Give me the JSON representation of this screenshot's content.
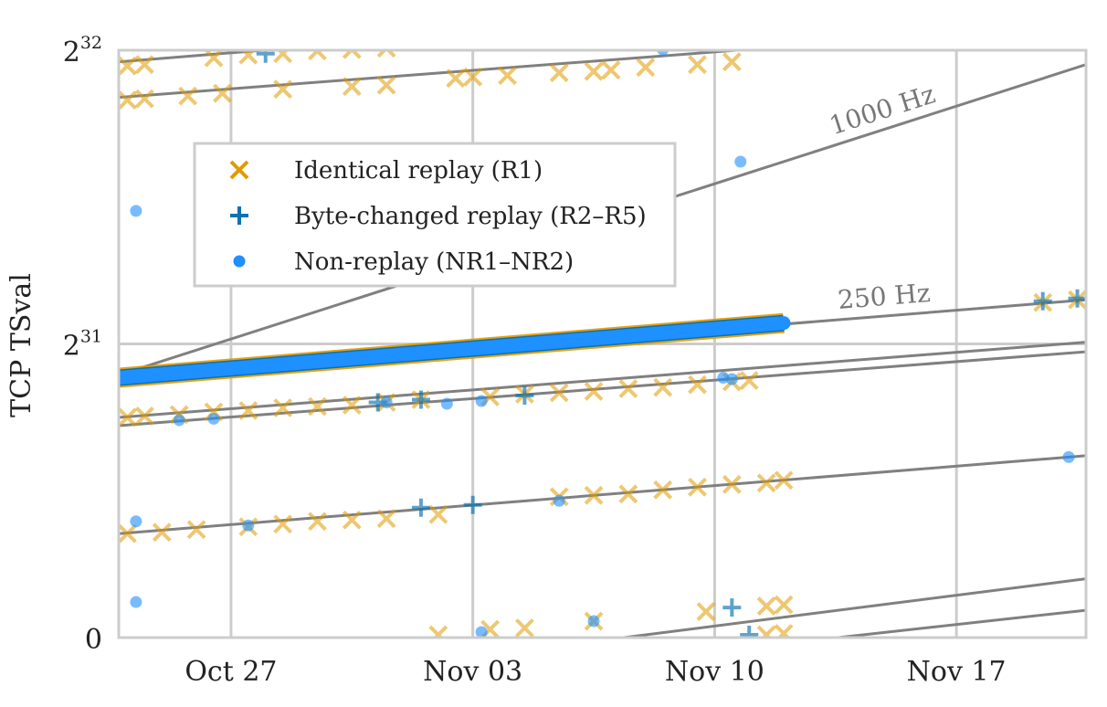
{
  "chart_data": {
    "type": "scatter",
    "ylabel": "TCP TSval",
    "x_ticks": [
      {
        "date": "2023-10-27",
        "label": "Oct 27"
      },
      {
        "date": "2023-11-03",
        "label": "Nov 03"
      },
      {
        "date": "2023-11-10",
        "label": "Nov 10"
      },
      {
        "date": "2023-11-17",
        "label": "Nov 17"
      }
    ],
    "xlim": [
      "2023-10-23 18:00",
      "2023-11-20 18:00"
    ],
    "y_ticks": [
      {
        "value": 0,
        "base": "0",
        "exp": ""
      },
      {
        "value": 2147483648,
        "base": "2",
        "exp": "31"
      },
      {
        "value": 4294967296,
        "base": "2",
        "exp": "32"
      }
    ],
    "ylim": [
      0,
      4294967296
    ],
    "grid": true,
    "legend": {
      "position": "upper-left",
      "entries": [
        {
          "label": "Identical replay (R1)",
          "marker": "x",
          "color": "#E09A00"
        },
        {
          "label": "Byte-changed replay (R2–R5)",
          "marker": "+",
          "color": "#0A72B0"
        },
        {
          "label": "Non-replay (NR1–NR2)",
          "marker": "o",
          "color": "#1E90FF"
        }
      ]
    },
    "reference_lines": [
      {
        "label": "1000 Hz",
        "x": [
          "2023-10-23 18:00",
          "2023-11-20 18:00"
        ],
        "y": [
          1920000000,
          4190000000
        ]
      },
      {
        "label": "250 Hz",
        "x": [
          "2023-10-23 18:00",
          "2023-11-20 18:00"
        ],
        "y": [
          1900000000,
          2470000000
        ]
      },
      {
        "label": "",
        "x": [
          "2023-10-23 18:00",
          "2023-11-20 18:00"
        ],
        "y": [
          1610000000,
          2160000000
        ]
      },
      {
        "label": "",
        "x": [
          "2023-10-23 18:00",
          "2023-11-20 18:00"
        ],
        "y": [
          1550000000,
          2090000000
        ]
      },
      {
        "label": "",
        "x": [
          "2023-10-23 18:00",
          "2023-11-20 18:00"
        ],
        "y": [
          4210000000,
          4780000000
        ]
      },
      {
        "label": "",
        "x": [
          "2023-10-23 18:00",
          "2023-11-20 18:00"
        ],
        "y": [
          3950000000,
          4490000000
        ]
      },
      {
        "label": "",
        "x": [
          "2023-10-23 18:00",
          "2023-11-20 18:00"
        ],
        "y": [
          760000000,
          1330000000
        ]
      },
      {
        "label": "",
        "x": [
          "2023-10-23 18:00",
          "2023-11-20 18:00"
        ],
        "y": [
          -470000000,
          430000000
        ]
      },
      {
        "label": "",
        "x": [
          "2023-10-23 18:00",
          "2023-11-20 18:00"
        ],
        "y": [
          -580000000,
          200000000
        ]
      }
    ],
    "series": [
      {
        "name": "Identical replay (R1)",
        "marker": "x",
        "color": "#E09A00",
        "points": [
          {
            "x": "2023-10-24 00:00",
            "y": 4180000000
          },
          {
            "x": "2023-10-24 12:00",
            "y": 4190000000
          },
          {
            "x": "2023-10-26 12:00",
            "y": 4240000000
          },
          {
            "x": "2023-10-27 12:00",
            "y": 4260000000
          },
          {
            "x": "2023-10-28 12:00",
            "y": 4270000000
          },
          {
            "x": "2023-10-29 12:00",
            "y": 4290000000
          },
          {
            "x": "2023-10-30 12:00",
            "y": 4300000000
          },
          {
            "x": "2023-10-31 12:00",
            "y": 4310000000
          },
          {
            "x": "2023-10-24 00:00",
            "y": 3930000000
          },
          {
            "x": "2023-10-24 12:00",
            "y": 3940000000
          },
          {
            "x": "2023-10-25 18:00",
            "y": 3960000000
          },
          {
            "x": "2023-10-26 18:00",
            "y": 3980000000
          },
          {
            "x": "2023-10-28 12:00",
            "y": 4010000000
          },
          {
            "x": "2023-10-30 12:00",
            "y": 4030000000
          },
          {
            "x": "2023-10-31 12:00",
            "y": 4040000000
          },
          {
            "x": "2023-11-02 12:00",
            "y": 4090000000
          },
          {
            "x": "2023-11-03 00:00",
            "y": 4100000000
          },
          {
            "x": "2023-11-04 00:00",
            "y": 4110000000
          },
          {
            "x": "2023-11-05 12:00",
            "y": 4130000000
          },
          {
            "x": "2023-11-06 12:00",
            "y": 4140000000
          },
          {
            "x": "2023-11-07 00:00",
            "y": 4150000000
          },
          {
            "x": "2023-11-08 00:00",
            "y": 4170000000
          },
          {
            "x": "2023-11-09 12:00",
            "y": 4190000000
          },
          {
            "x": "2023-11-10 12:00",
            "y": 4210000000
          },
          {
            "x": "2023-10-24 00:00",
            "y": 1610000000
          },
          {
            "x": "2023-10-24 12:00",
            "y": 1620000000
          },
          {
            "x": "2023-10-25 12:00",
            "y": 1630000000
          },
          {
            "x": "2023-10-26 12:00",
            "y": 1650000000
          },
          {
            "x": "2023-10-27 12:00",
            "y": 1660000000
          },
          {
            "x": "2023-10-28 12:00",
            "y": 1680000000
          },
          {
            "x": "2023-10-29 12:00",
            "y": 1690000000
          },
          {
            "x": "2023-10-30 12:00",
            "y": 1700000000
          },
          {
            "x": "2023-10-31 12:00",
            "y": 1720000000
          },
          {
            "x": "2023-11-01 12:00",
            "y": 1740000000
          },
          {
            "x": "2023-11-03 12:00",
            "y": 1760000000
          },
          {
            "x": "2023-11-04 12:00",
            "y": 1780000000
          },
          {
            "x": "2023-11-05 12:00",
            "y": 1790000000
          },
          {
            "x": "2023-11-06 12:00",
            "y": 1800000000
          },
          {
            "x": "2023-11-07 12:00",
            "y": 1820000000
          },
          {
            "x": "2023-11-08 12:00",
            "y": 1830000000
          },
          {
            "x": "2023-11-09 12:00",
            "y": 1850000000
          },
          {
            "x": "2023-11-10 12:00",
            "y": 1870000000
          },
          {
            "x": "2023-11-11 00:00",
            "y": 1880000000
          },
          {
            "x": "2023-10-24 00:00",
            "y": 760000000
          },
          {
            "x": "2023-10-25 00:00",
            "y": 770000000
          },
          {
            "x": "2023-10-26 00:00",
            "y": 790000000
          },
          {
            "x": "2023-10-27 12:00",
            "y": 810000000
          },
          {
            "x": "2023-10-28 12:00",
            "y": 830000000
          },
          {
            "x": "2023-10-29 12:00",
            "y": 850000000
          },
          {
            "x": "2023-10-30 12:00",
            "y": 860000000
          },
          {
            "x": "2023-10-31 12:00",
            "y": 870000000
          },
          {
            "x": "2023-11-02 00:00",
            "y": 900000000
          },
          {
            "x": "2023-11-05 12:00",
            "y": 1030000000
          },
          {
            "x": "2023-11-06 12:00",
            "y": 1040000000
          },
          {
            "x": "2023-11-07 12:00",
            "y": 1050000000
          },
          {
            "x": "2023-11-08 12:00",
            "y": 1080000000
          },
          {
            "x": "2023-11-09 12:00",
            "y": 1100000000
          },
          {
            "x": "2023-11-10 12:00",
            "y": 1120000000
          },
          {
            "x": "2023-11-11 12:00",
            "y": 1130000000
          },
          {
            "x": "2023-11-12 00:00",
            "y": 1150000000
          },
          {
            "x": "2023-11-02 00:00",
            "y": 20000000
          },
          {
            "x": "2023-11-03 12:00",
            "y": 60000000
          },
          {
            "x": "2023-11-04 12:00",
            "y": 70000000
          },
          {
            "x": "2023-11-06 12:00",
            "y": 120000000
          },
          {
            "x": "2023-11-09 18:00",
            "y": 190000000
          },
          {
            "x": "2023-11-11 12:00",
            "y": 230000000
          },
          {
            "x": "2023-11-12 00:00",
            "y": 240000000
          },
          {
            "x": "2023-11-11 12:00",
            "y": 20000000
          },
          {
            "x": "2023-11-12 00:00",
            "y": 30000000
          },
          {
            "x": "2023-11-19 12:00",
            "y": 2450000000
          },
          {
            "x": "2023-11-20 12:00",
            "y": 2470000000
          }
        ]
      },
      {
        "name": "Byte-changed replay (R2–R5)",
        "marker": "+",
        "color": "#0A72B0",
        "points": [
          {
            "x": "2023-10-28 00:00",
            "y": 4270000000
          },
          {
            "x": "2023-10-31 06:00",
            "y": 1720000000
          },
          {
            "x": "2023-11-01 12:00",
            "y": 1740000000
          },
          {
            "x": "2023-11-04 12:00",
            "y": 1770000000
          },
          {
            "x": "2023-11-01 12:00",
            "y": 950000000
          },
          {
            "x": "2023-11-03 00:00",
            "y": 970000000
          },
          {
            "x": "2023-11-10 12:00",
            "y": 220000000
          },
          {
            "x": "2023-11-11 00:00",
            "y": 20000000
          },
          {
            "x": "2023-11-19 12:00",
            "y": 2460000000
          },
          {
            "x": "2023-11-20 12:00",
            "y": 2480000000
          }
        ]
      },
      {
        "name": "Non-replay (NR1–NR2)",
        "marker": "o",
        "color": "#1E90FF",
        "points": [
          {
            "x": "2023-10-24 06:00",
            "y": 3120000000
          },
          {
            "x": "2023-10-24 06:00",
            "y": 850000000
          },
          {
            "x": "2023-10-24 06:00",
            "y": 260000000
          },
          {
            "x": "2023-10-25 12:00",
            "y": 1590000000
          },
          {
            "x": "2023-10-26 12:00",
            "y": 1600000000
          },
          {
            "x": "2023-10-27 12:00",
            "y": 820000000
          },
          {
            "x": "2023-10-31 12:00",
            "y": 1720000000
          },
          {
            "x": "2023-11-02 06:00",
            "y": 1710000000
          },
          {
            "x": "2023-11-03 06:00",
            "y": 1730000000
          },
          {
            "x": "2023-11-03 06:00",
            "y": 40000000
          },
          {
            "x": "2023-11-05 12:00",
            "y": 1000000000
          },
          {
            "x": "2023-11-06 12:00",
            "y": 120000000
          },
          {
            "x": "2023-11-08 12:00",
            "y": 4300000000
          },
          {
            "x": "2023-11-10 06:00",
            "y": 1900000000
          },
          {
            "x": "2023-11-10 12:00",
            "y": 1890000000
          },
          {
            "x": "2023-11-10 18:00",
            "y": 3480000000
          },
          {
            "x": "2023-11-20 06:00",
            "y": 1320000000
          }
        ]
      }
    ],
    "dense_band": {
      "series": [
        "Identical replay (R1)",
        "Byte-changed replay (R2–R5)",
        "Non-replay (NR1–NR2)"
      ],
      "x": [
        "2023-10-23 18:00",
        "2023-11-12 00:00"
      ],
      "y": [
        1900000000,
        2300000000
      ]
    }
  }
}
